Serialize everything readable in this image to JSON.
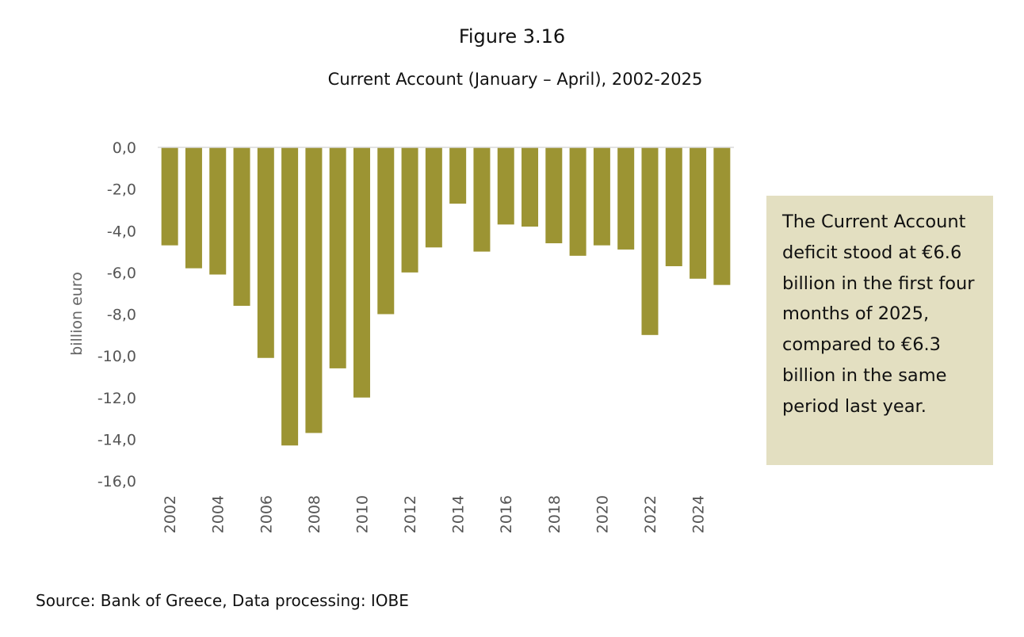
{
  "figure_label": "Figure 3.16",
  "note": "The Current Account deficit stood at €6.6 billion in the first four months of 2025, compared to €6.3 billion in the same period last year.",
  "source": "Source: Bank of Greece, Data processing: IOBE",
  "colors": {
    "bar": "#9c9433",
    "note_bg": "#e3dfc1"
  },
  "chart_data": {
    "type": "bar",
    "title": "Current Account (January – April), 2002-2025",
    "xlabel": "",
    "ylabel": "billion euro",
    "ylim": [
      -16,
      0
    ],
    "yticks": [
      "0,0",
      "-2,0",
      "-4,0",
      "-6,0",
      "-8,0",
      "-10,0",
      "-12,0",
      "-14,0",
      "-16,0"
    ],
    "ytick_values": [
      0,
      -2,
      -4,
      -6,
      -8,
      -10,
      -12,
      -14,
      -16
    ],
    "categories": [
      "2002",
      "2003",
      "2004",
      "2005",
      "2006",
      "2007",
      "2008",
      "2009",
      "2010",
      "2011",
      "2012",
      "2013",
      "2014",
      "2015",
      "2016",
      "2017",
      "2018",
      "2019",
      "2020",
      "2021",
      "2022",
      "2023",
      "2024",
      "2025"
    ],
    "xtick_labels": [
      "2002",
      "2004",
      "2006",
      "2008",
      "2010",
      "2012",
      "2014",
      "2016",
      "2018",
      "2020",
      "2022",
      "2024"
    ],
    "values": [
      -4.7,
      -5.8,
      -6.1,
      -7.6,
      -10.1,
      -14.3,
      -13.7,
      -10.6,
      -12.0,
      -8.0,
      -6.0,
      -4.8,
      -2.7,
      -5.0,
      -3.7,
      -3.8,
      -4.6,
      -5.2,
      -4.7,
      -4.9,
      -9.0,
      -5.7,
      -6.3,
      -6.6
    ],
    "grid": false,
    "legend": "none"
  }
}
